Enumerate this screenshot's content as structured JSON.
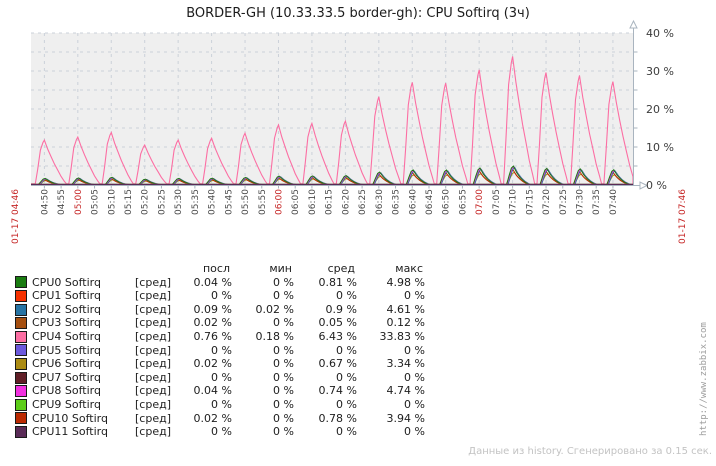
{
  "header": {
    "title": "BORDER-GH (10.33.33.5 border-gh): CPU Softirq (3ч)"
  },
  "footer": {
    "generated_note": "Данные из history. Сгенерировано за 0.15 сек.",
    "watermark_url": "http://www.zabbix.com"
  },
  "colors": {
    "plot_bg": "#efefef",
    "grid": "#cbd1d9",
    "axis": "#a9b4bf",
    "tick_label": "#4a4a4a",
    "tick_label_red": "#c62626",
    "y_label": "#3c3c3c"
  },
  "chart_data": {
    "type": "line",
    "title": "BORDER-GH (10.33.33.5 border-gh): CPU Softirq (3ч)",
    "ylabel": "%",
    "ylim": [
      0,
      40
    ],
    "grid": {
      "h_step_pct": 5,
      "v_step_min": 10,
      "style": "dashed"
    },
    "legend_position": "bottom-table",
    "y_ticks": [
      {
        "v": 0,
        "label": "0 %"
      },
      {
        "v": 10,
        "label": "10 %"
      },
      {
        "v": 20,
        "label": "20 %"
      },
      {
        "v": 30,
        "label": "30 %"
      },
      {
        "v": 40,
        "label": "40 %"
      }
    ],
    "x_range_min": 180,
    "x_ticks": [
      {
        "t": 0,
        "label": "01-17 04:46",
        "red": true,
        "edge": "left"
      },
      {
        "t": 4,
        "label": "04:50"
      },
      {
        "t": 9,
        "label": "04:55"
      },
      {
        "t": 14,
        "label": "05:00",
        "red": true
      },
      {
        "t": 19,
        "label": "05:05"
      },
      {
        "t": 24,
        "label": "05:10"
      },
      {
        "t": 29,
        "label": "05:15"
      },
      {
        "t": 34,
        "label": "05:20"
      },
      {
        "t": 39,
        "label": "05:25"
      },
      {
        "t": 44,
        "label": "05:30"
      },
      {
        "t": 49,
        "label": "05:35"
      },
      {
        "t": 54,
        "label": "05:40"
      },
      {
        "t": 59,
        "label": "05:45"
      },
      {
        "t": 64,
        "label": "05:50"
      },
      {
        "t": 69,
        "label": "05:55"
      },
      {
        "t": 74,
        "label": "06:00",
        "red": true
      },
      {
        "t": 79,
        "label": "06:05"
      },
      {
        "t": 84,
        "label": "06:10"
      },
      {
        "t": 89,
        "label": "06:15"
      },
      {
        "t": 94,
        "label": "06:20"
      },
      {
        "t": 99,
        "label": "06:25"
      },
      {
        "t": 104,
        "label": "06:30"
      },
      {
        "t": 109,
        "label": "06:35"
      },
      {
        "t": 114,
        "label": "06:40"
      },
      {
        "t": 119,
        "label": "06:45"
      },
      {
        "t": 124,
        "label": "06:50"
      },
      {
        "t": 129,
        "label": "06:55"
      },
      {
        "t": 134,
        "label": "07:00",
        "red": true
      },
      {
        "t": 139,
        "label": "07:05"
      },
      {
        "t": 144,
        "label": "07:10"
      },
      {
        "t": 149,
        "label": "07:15"
      },
      {
        "t": 154,
        "label": "07:20"
      },
      {
        "t": 159,
        "label": "07:25"
      },
      {
        "t": 164,
        "label": "07:30"
      },
      {
        "t": 169,
        "label": "07:35"
      },
      {
        "t": 174,
        "label": "07:40"
      },
      {
        "t": 180,
        "label": "01-17 07:46",
        "red": true,
        "edge": "right"
      }
    ],
    "spike_times_min": [
      4,
      14,
      24,
      34,
      44,
      54,
      64,
      74,
      84,
      94,
      104,
      114,
      124,
      134,
      144,
      154,
      164,
      174
    ],
    "cpu4_spike_peaks_pct": [
      11.8,
      12.6,
      13.8,
      10.5,
      11.8,
      12.3,
      13.6,
      15.8,
      16.2,
      16.8,
      23.2,
      27.0,
      26.8,
      30.3,
      33.83,
      29.6,
      28.8,
      27.2
    ],
    "series": [
      {
        "name": "CPU0 Softirq",
        "color": "#1A7C11",
        "shape": "bump",
        "max_pct": 4.98
      },
      {
        "name": "CPU1 Softirq",
        "color": "#F63100",
        "shape": "flat",
        "max_pct": 0
      },
      {
        "name": "CPU2 Softirq",
        "color": "#2774A4",
        "shape": "bump",
        "max_pct": 4.61
      },
      {
        "name": "CPU3 Softirq",
        "color": "#A54F10",
        "shape": "bump",
        "max_pct": 0.12
      },
      {
        "name": "CPU4 Softirq",
        "color": "#FC6EA3",
        "shape": "spike",
        "max_pct": 33.83
      },
      {
        "name": "CPU5 Softirq",
        "color": "#6C59DC",
        "shape": "flat",
        "max_pct": 0
      },
      {
        "name": "CPU6 Softirq",
        "color": "#AC8C14",
        "shape": "bump",
        "max_pct": 3.34
      },
      {
        "name": "CPU7 Softirq",
        "color": "#611F27",
        "shape": "flat",
        "max_pct": 0
      },
      {
        "name": "CPU8 Softirq",
        "color": "#F230E0",
        "shape": "bump",
        "max_pct": 4.74
      },
      {
        "name": "CPU9 Softirq",
        "color": "#5CCD18",
        "shape": "flat",
        "max_pct": 0
      },
      {
        "name": "CPU10 Softirq",
        "color": "#BB2A02",
        "shape": "bump",
        "max_pct": 3.94
      },
      {
        "name": "CPU11 Softirq",
        "color": "#5A2B57",
        "shape": "flat",
        "max_pct": 0
      }
    ]
  },
  "legend": {
    "headers": [
      "посл",
      "мин",
      "сред",
      "макс"
    ],
    "rows": [
      {
        "name": "CPU0 Softirq",
        "tag": "[сред]",
        "color": "#1A7C11",
        "last": "0.04 %",
        "min": "0 %",
        "avg": "0.81 %",
        "max": "4.98 %"
      },
      {
        "name": "CPU1 Softirq",
        "tag": "[сред]",
        "color": "#F63100",
        "last": "0 %",
        "min": "0 %",
        "avg": "0 %",
        "max": "0 %"
      },
      {
        "name": "CPU2 Softirq",
        "tag": "[сред]",
        "color": "#2774A4",
        "last": "0.09 %",
        "min": "0.02 %",
        "avg": "0.9 %",
        "max": "4.61 %"
      },
      {
        "name": "CPU3 Softirq",
        "tag": "[сред]",
        "color": "#A54F10",
        "last": "0.02 %",
        "min": "0 %",
        "avg": "0.05 %",
        "max": "0.12 %"
      },
      {
        "name": "CPU4 Softirq",
        "tag": "[сред]",
        "color": "#FC6EA3",
        "last": "0.76 %",
        "min": "0.18 %",
        "avg": "6.43 %",
        "max": "33.83 %"
      },
      {
        "name": "CPU5 Softirq",
        "tag": "[сред]",
        "color": "#6C59DC",
        "last": "0 %",
        "min": "0 %",
        "avg": "0 %",
        "max": "0 %"
      },
      {
        "name": "CPU6 Softirq",
        "tag": "[сред]",
        "color": "#AC8C14",
        "last": "0.02 %",
        "min": "0 %",
        "avg": "0.67 %",
        "max": "3.34 %"
      },
      {
        "name": "CPU7 Softirq",
        "tag": "[сред]",
        "color": "#611F27",
        "last": "0 %",
        "min": "0 %",
        "avg": "0 %",
        "max": "0 %"
      },
      {
        "name": "CPU8 Softirq",
        "tag": "[сред]",
        "color": "#F230E0",
        "last": "0.04 %",
        "min": "0 %",
        "avg": "0.74 %",
        "max": "4.74 %"
      },
      {
        "name": "CPU9 Softirq",
        "tag": "[сред]",
        "color": "#5CCD18",
        "last": "0 %",
        "min": "0 %",
        "avg": "0 %",
        "max": "0 %"
      },
      {
        "name": "CPU10 Softirq",
        "tag": "[сред]",
        "color": "#BB2A02",
        "last": "0.02 %",
        "min": "0 %",
        "avg": "0.78 %",
        "max": "3.94 %"
      },
      {
        "name": "CPU11 Softirq",
        "tag": "[сред]",
        "color": "#5A2B57",
        "last": "0 %",
        "min": "0 %",
        "avg": "0 %",
        "max": "0 %"
      }
    ]
  }
}
